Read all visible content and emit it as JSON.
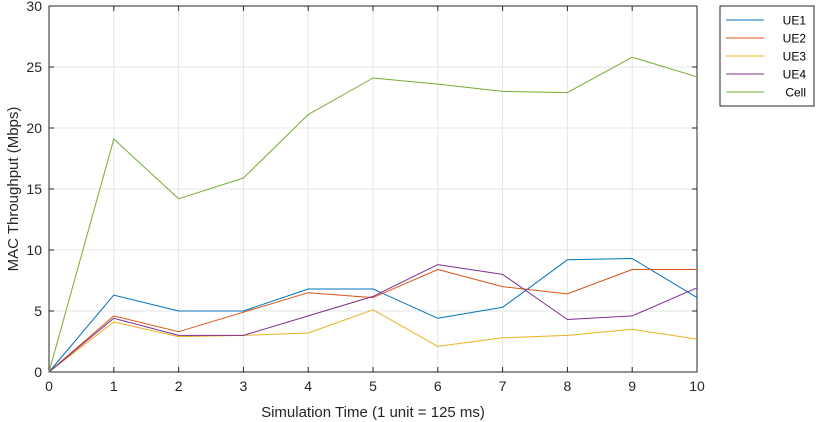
{
  "chart_data": {
    "type": "line",
    "title": "",
    "xlabel": "Simulation Time (1 unit = 125 ms)",
    "ylabel": "MAC Throughput (Mbps)",
    "xlim": [
      0,
      10
    ],
    "ylim": [
      0,
      30
    ],
    "grid": true,
    "legend_position": "outside-top-right",
    "x": [
      0,
      1,
      2,
      3,
      4,
      5,
      6,
      7,
      8,
      9,
      10
    ],
    "x_ticks": [
      "0",
      "1",
      "2",
      "3",
      "4",
      "5",
      "6",
      "7",
      "8",
      "9",
      "10"
    ],
    "y_ticks": [
      "0",
      "5",
      "10",
      "15",
      "20",
      "25",
      "30"
    ],
    "series": [
      {
        "name": "UE1",
        "color": "#0072BD",
        "values": [
          0,
          6.3,
          5.0,
          5.0,
          6.8,
          6.8,
          4.4,
          5.3,
          9.2,
          9.3,
          6.1
        ]
      },
      {
        "name": "UE2",
        "color": "#D95319",
        "values": [
          0,
          4.6,
          3.3,
          4.9,
          6.5,
          6.1,
          8.4,
          7.0,
          6.4,
          8.4,
          8.4
        ]
      },
      {
        "name": "UE3",
        "color": "#EDB120",
        "values": [
          0,
          4.1,
          2.9,
          3.0,
          3.2,
          5.1,
          2.1,
          2.8,
          3.0,
          3.5,
          2.7
        ]
      },
      {
        "name": "UE4",
        "color": "#7E2F8E",
        "values": [
          0,
          4.4,
          3.0,
          3.0,
          4.6,
          6.2,
          8.8,
          8.0,
          4.3,
          4.6,
          6.9
        ]
      },
      {
        "name": "Cell",
        "color": "#77AC30",
        "values": [
          0,
          19.1,
          14.2,
          15.9,
          21.1,
          24.1,
          23.6,
          23.0,
          22.9,
          25.8,
          24.2
        ]
      }
    ]
  }
}
